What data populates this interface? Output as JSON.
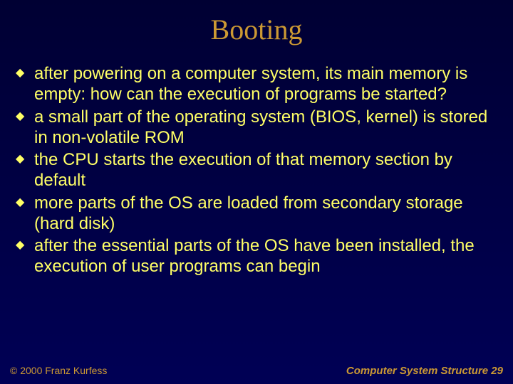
{
  "colors": {
    "background_top": "#000033",
    "background_bottom": "#000055",
    "title_color": "#cc9933",
    "body_text_color": "#ffff66",
    "footer_color": "#cc9933",
    "bullet_color": "#ffff66"
  },
  "typography": {
    "title_font": "Times New Roman",
    "title_size_pt": 40,
    "body_font": "Arial",
    "body_size_pt": 24,
    "footer_size_pt": 14
  },
  "title": "Booting",
  "bullets": [
    "after powering on a computer system, its main memory is empty: how can the execution of programs be started?",
    "a small part of the operating system (BIOS, kernel) is stored in non-volatile ROM",
    "the CPU starts the execution of that memory section by default",
    "more parts of the OS are loaded from secondary storage (hard disk)",
    "after the essential parts of the OS have been installed, the execution of user programs can begin"
  ],
  "footer": {
    "left": "© 2000 Franz Kurfess",
    "right": "Computer System Structure  29"
  }
}
